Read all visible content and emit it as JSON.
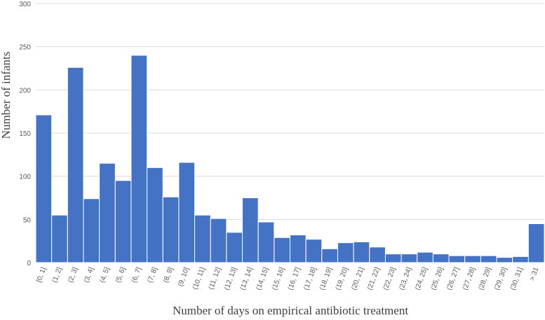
{
  "chart_data": {
    "type": "bar",
    "xlabel": "Number of days on empirical antibiotic treatment",
    "ylabel": "Number of infants",
    "ylim": [
      0,
      300
    ],
    "yticks": [
      0,
      50,
      100,
      150,
      200,
      250,
      300
    ],
    "grid": "horizontal",
    "color": "#4472c4",
    "categories": [
      "[0, 1]",
      "(1, 2]",
      "(2, 3]",
      "(3, 4]",
      "(4, 5]",
      "(5, 6]",
      "(6, 7]",
      "(7, 8]",
      "(8, 9]",
      "(9, 10]",
      "(10, 11]",
      "(11, 12]",
      "(12, 13]",
      "(13, 14]",
      "(14, 15]",
      "(15, 16]",
      "(16, 17]",
      "(17, 18]",
      "(18, 19]",
      "(19, 20]",
      "(20, 21]",
      "(21, 22]",
      "(22, 23]",
      "(23, 24]",
      "(24, 25]",
      "(25, 26]",
      "(26, 27]",
      "(27, 28]",
      "(28, 29]",
      "(29, 30]",
      "(30, 31]",
      "> 31"
    ],
    "values": [
      171,
      55,
      226,
      74,
      115,
      95,
      240,
      110,
      76,
      116,
      55,
      51,
      35,
      75,
      47,
      29,
      32,
      27,
      16,
      23,
      24,
      18,
      10,
      10,
      12,
      10,
      8,
      8,
      8,
      6,
      7,
      45
    ]
  }
}
